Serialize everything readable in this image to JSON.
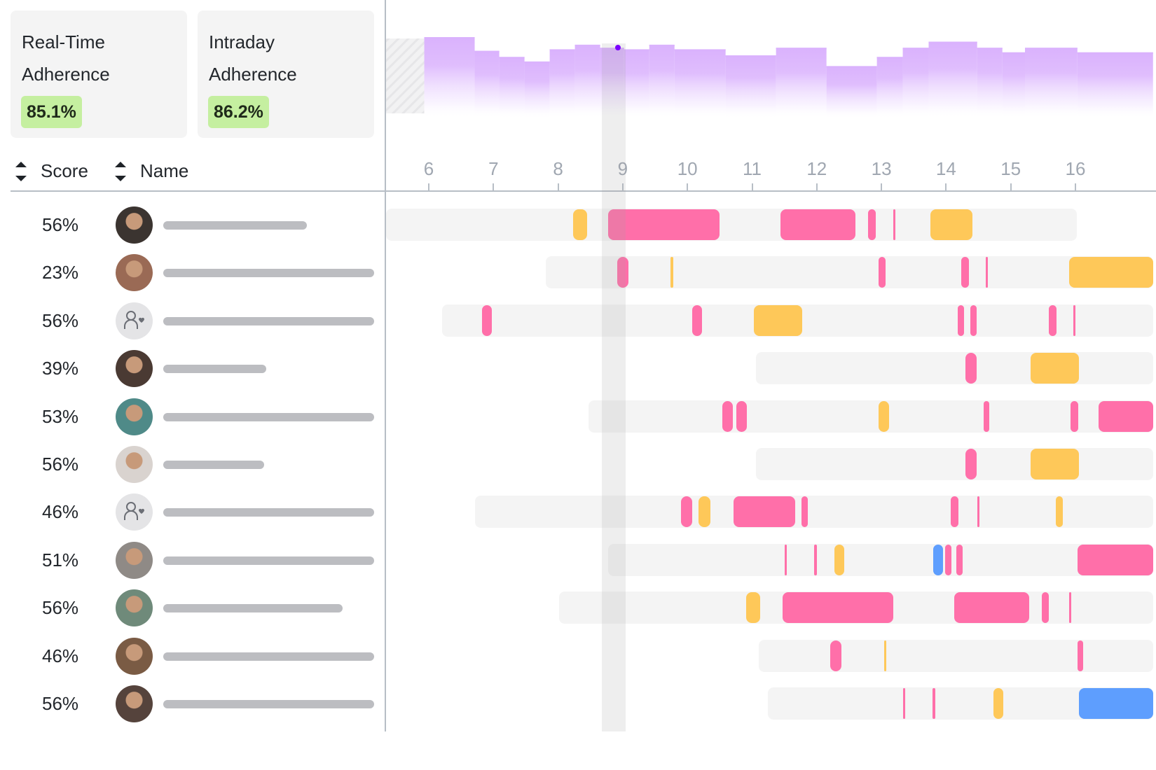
{
  "cards": [
    {
      "title_line1": "Real-Time",
      "title_line2": "Adherence",
      "value": "85.1%"
    },
    {
      "title_line1": "Intraday",
      "title_line2": "Adherence",
      "value": "86.2%"
    }
  ],
  "columns": {
    "score": "Score",
    "name": "Name"
  },
  "colors": {
    "break": "#ff6fa9",
    "lunch": "#fec859",
    "meeting": "#5e9efe",
    "lane": "#f4f4f4",
    "histogram": "#dab2fd",
    "now": "#7b00ff",
    "badge": "#c5efa0"
  },
  "chart_data": {
    "type": "timeline",
    "x_ticks": [
      "6",
      "7",
      "8",
      "9",
      "10",
      "11",
      "12",
      "13",
      "14",
      "15",
      "16"
    ],
    "x_range": [
      5.34,
      17.2
    ],
    "now_time": 8.93,
    "histogram": {
      "unavailable_until": 5.93,
      "bins": [
        {
          "start": 5.93,
          "end": 6.71,
          "value": 100
        },
        {
          "start": 6.71,
          "end": 7.09,
          "value": 91
        },
        {
          "start": 7.09,
          "end": 7.48,
          "value": 87
        },
        {
          "start": 7.48,
          "end": 7.87,
          "value": 84
        },
        {
          "start": 7.87,
          "end": 8.26,
          "value": 92
        },
        {
          "start": 8.26,
          "end": 8.65,
          "value": 95
        },
        {
          "start": 8.65,
          "end": 9.02,
          "value": 93
        },
        {
          "start": 9.02,
          "end": 9.41,
          "value": 92
        },
        {
          "start": 9.41,
          "end": 9.8,
          "value": 95
        },
        {
          "start": 9.8,
          "end": 10.59,
          "value": 92
        },
        {
          "start": 10.59,
          "end": 11.37,
          "value": 88
        },
        {
          "start": 11.37,
          "end": 12.15,
          "value": 93
        },
        {
          "start": 12.15,
          "end": 12.93,
          "value": 81
        },
        {
          "start": 12.93,
          "end": 13.33,
          "value": 87
        },
        {
          "start": 13.33,
          "end": 13.73,
          "value": 93
        },
        {
          "start": 13.73,
          "end": 14.48,
          "value": 97
        },
        {
          "start": 14.48,
          "end": 14.87,
          "value": 93
        },
        {
          "start": 14.87,
          "end": 15.22,
          "value": 90
        },
        {
          "start": 15.22,
          "end": 16.03,
          "value": 93
        },
        {
          "start": 16.03,
          "end": 17.2,
          "value": 90
        }
      ]
    }
  },
  "rows": [
    {
      "score": "56%",
      "avatar": "photo",
      "avatar_bg": "#3b3430",
      "name_len": 0.68,
      "lane": [
        5.34,
        16.02
      ],
      "segments": [
        {
          "s": 8.23,
          "e": 8.45,
          "t": "lunch"
        },
        {
          "s": 8.77,
          "e": 10.5,
          "t": "break"
        },
        {
          "s": 11.44,
          "e": 12.6,
          "t": "break"
        },
        {
          "s": 12.79,
          "e": 12.91,
          "t": "break"
        },
        {
          "s": 13.18,
          "e": 13.22,
          "t": "break"
        },
        {
          "s": 13.76,
          "e": 14.41,
          "t": "lunch"
        }
      ]
    },
    {
      "score": "23%",
      "avatar": "photo",
      "avatar_bg": "#9a6a55",
      "name_len": 1.0,
      "lane": [
        7.81,
        17.2
      ],
      "segments": [
        {
          "s": 8.91,
          "e": 9.09,
          "t": "break"
        },
        {
          "s": 9.74,
          "e": 9.78,
          "t": "lunch"
        },
        {
          "s": 12.96,
          "e": 13.06,
          "t": "break"
        },
        {
          "s": 14.23,
          "e": 14.35,
          "t": "break"
        },
        {
          "s": 14.61,
          "e": 14.64,
          "t": "break"
        },
        {
          "s": 15.9,
          "e": 17.2,
          "t": "lunch"
        }
      ]
    },
    {
      "score": "56%",
      "avatar": "placeholder",
      "avatar_bg": "#e4e4e6",
      "name_len": 1.0,
      "lane": [
        6.21,
        17.2
      ],
      "segments": [
        {
          "s": 6.82,
          "e": 6.98,
          "t": "break"
        },
        {
          "s": 10.07,
          "e": 10.23,
          "t": "break"
        },
        {
          "s": 11.03,
          "e": 11.77,
          "t": "lunch"
        },
        {
          "s": 14.18,
          "e": 14.28,
          "t": "break"
        },
        {
          "s": 14.37,
          "e": 14.47,
          "t": "break"
        },
        {
          "s": 15.59,
          "e": 15.71,
          "t": "break"
        },
        {
          "s": 15.97,
          "e": 15.99,
          "t": "break"
        }
      ]
    },
    {
      "score": "39%",
      "avatar": "photo",
      "avatar_bg": "#4a3a33",
      "name_len": 0.49,
      "lane": [
        11.06,
        17.2
      ],
      "segments": [
        {
          "s": 14.3,
          "e": 14.47,
          "t": "break"
        },
        {
          "s": 15.31,
          "e": 16.05,
          "t": "lunch"
        }
      ]
    },
    {
      "score": "53%",
      "avatar": "photo",
      "avatar_bg": "#4f8a88",
      "name_len": 1.0,
      "lane": [
        8.47,
        17.2
      ],
      "segments": [
        {
          "s": 10.54,
          "e": 10.7,
          "t": "break"
        },
        {
          "s": 10.76,
          "e": 10.92,
          "t": "break"
        },
        {
          "s": 12.96,
          "e": 13.12,
          "t": "lunch"
        },
        {
          "s": 14.58,
          "e": 14.67,
          "t": "break"
        },
        {
          "s": 15.92,
          "e": 16.04,
          "t": "break"
        },
        {
          "s": 16.36,
          "e": 17.2,
          "t": "break"
        }
      ]
    },
    {
      "score": "56%",
      "avatar": "photo",
      "avatar_bg": "#d9d3cf",
      "name_len": 0.48,
      "lane": [
        11.06,
        17.2
      ],
      "segments": [
        {
          "s": 14.3,
          "e": 14.47,
          "t": "break"
        },
        {
          "s": 15.31,
          "e": 16.05,
          "t": "lunch"
        }
      ]
    },
    {
      "score": "46%",
      "avatar": "placeholder",
      "avatar_bg": "#e4e4e6",
      "name_len": 1.0,
      "lane": [
        6.72,
        17.2
      ],
      "segments": [
        {
          "s": 9.9,
          "e": 10.07,
          "t": "break"
        },
        {
          "s": 10.17,
          "e": 10.36,
          "t": "lunch"
        },
        {
          "s": 10.71,
          "e": 11.67,
          "t": "break"
        },
        {
          "s": 11.76,
          "e": 11.86,
          "t": "break"
        },
        {
          "s": 14.07,
          "e": 14.19,
          "t": "break"
        },
        {
          "s": 14.48,
          "e": 14.51,
          "t": "break"
        },
        {
          "s": 15.7,
          "e": 15.81,
          "t": "lunch"
        }
      ]
    },
    {
      "score": "51%",
      "avatar": "photo",
      "avatar_bg": "#8f8a86",
      "name_len": 1.0,
      "lane": [
        8.77,
        17.2
      ],
      "segments": [
        {
          "s": 11.5,
          "e": 11.54,
          "t": "break"
        },
        {
          "s": 11.96,
          "e": 12.0,
          "t": "break"
        },
        {
          "s": 12.27,
          "e": 12.42,
          "t": "lunch"
        },
        {
          "s": 13.8,
          "e": 13.95,
          "t": "meeting"
        },
        {
          "s": 13.98,
          "e": 14.08,
          "t": "break"
        },
        {
          "s": 14.16,
          "e": 14.26,
          "t": "break"
        },
        {
          "s": 16.03,
          "e": 17.2,
          "t": "break"
        }
      ]
    },
    {
      "score": "56%",
      "avatar": "photo",
      "avatar_bg": "#6f8a7a",
      "name_len": 0.85,
      "lane": [
        8.02,
        17.2
      ],
      "segments": [
        {
          "s": 10.91,
          "e": 11.12,
          "t": "lunch"
        },
        {
          "s": 11.47,
          "e": 13.18,
          "t": "break"
        },
        {
          "s": 14.13,
          "e": 15.28,
          "t": "break"
        },
        {
          "s": 15.48,
          "e": 15.59,
          "t": "break"
        },
        {
          "s": 15.9,
          "e": 15.92,
          "t": "break"
        }
      ]
    },
    {
      "score": "46%",
      "avatar": "photo",
      "avatar_bg": "#7a5b44",
      "name_len": 1.0,
      "lane": [
        11.1,
        17.2
      ],
      "segments": [
        {
          "s": 12.21,
          "e": 12.38,
          "t": "break"
        },
        {
          "s": 13.04,
          "e": 13.08,
          "t": "lunch"
        },
        {
          "s": 16.03,
          "e": 16.12,
          "t": "break"
        }
      ]
    },
    {
      "score": "56%",
      "avatar": "photo",
      "avatar_bg": "#55433c",
      "name_len": 1.0,
      "lane": [
        11.24,
        17.2
      ],
      "segments": [
        {
          "s": 13.33,
          "e": 13.37,
          "t": "break"
        },
        {
          "s": 13.79,
          "e": 13.83,
          "t": "break"
        },
        {
          "s": 14.73,
          "e": 14.88,
          "t": "lunch"
        },
        {
          "s": 16.05,
          "e": 17.2,
          "t": "meeting"
        }
      ]
    }
  ]
}
